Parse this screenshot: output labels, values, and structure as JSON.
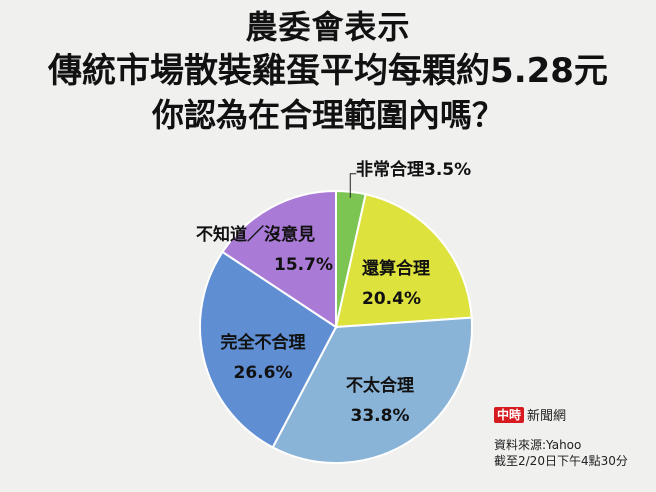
{
  "title": {
    "line1": "農委會表示",
    "line2": "傳統市場散裝雞蛋平均每顆約5.28元",
    "line3": "你認為在合理範圍內嗎？"
  },
  "chart_data": {
    "type": "pie",
    "start_angle_deg": 0,
    "direction": "clockwise",
    "slices": [
      {
        "label": "非常合理",
        "value": 3.5,
        "value_label": "3.5%",
        "color": "#7cc553"
      },
      {
        "label": "還算合理",
        "value": 20.4,
        "value_label": "20.4%",
        "color": "#dde23d"
      },
      {
        "label": "不太合理",
        "value": 33.8,
        "value_label": "33.8%",
        "color": "#8ab4d7"
      },
      {
        "label": "完全不合理",
        "value": 26.6,
        "value_label": "26.6%",
        "color": "#5f8ed3"
      },
      {
        "label": "不知道／沒意見",
        "value": 15.7,
        "value_label": "15.7%",
        "color": "#aa7bd6"
      }
    ]
  },
  "brand": {
    "logo": "中時",
    "name": "新聞網"
  },
  "source": {
    "line1": "資料來源:Yahoo",
    "line2": "截至2/20日下午4點30分"
  }
}
